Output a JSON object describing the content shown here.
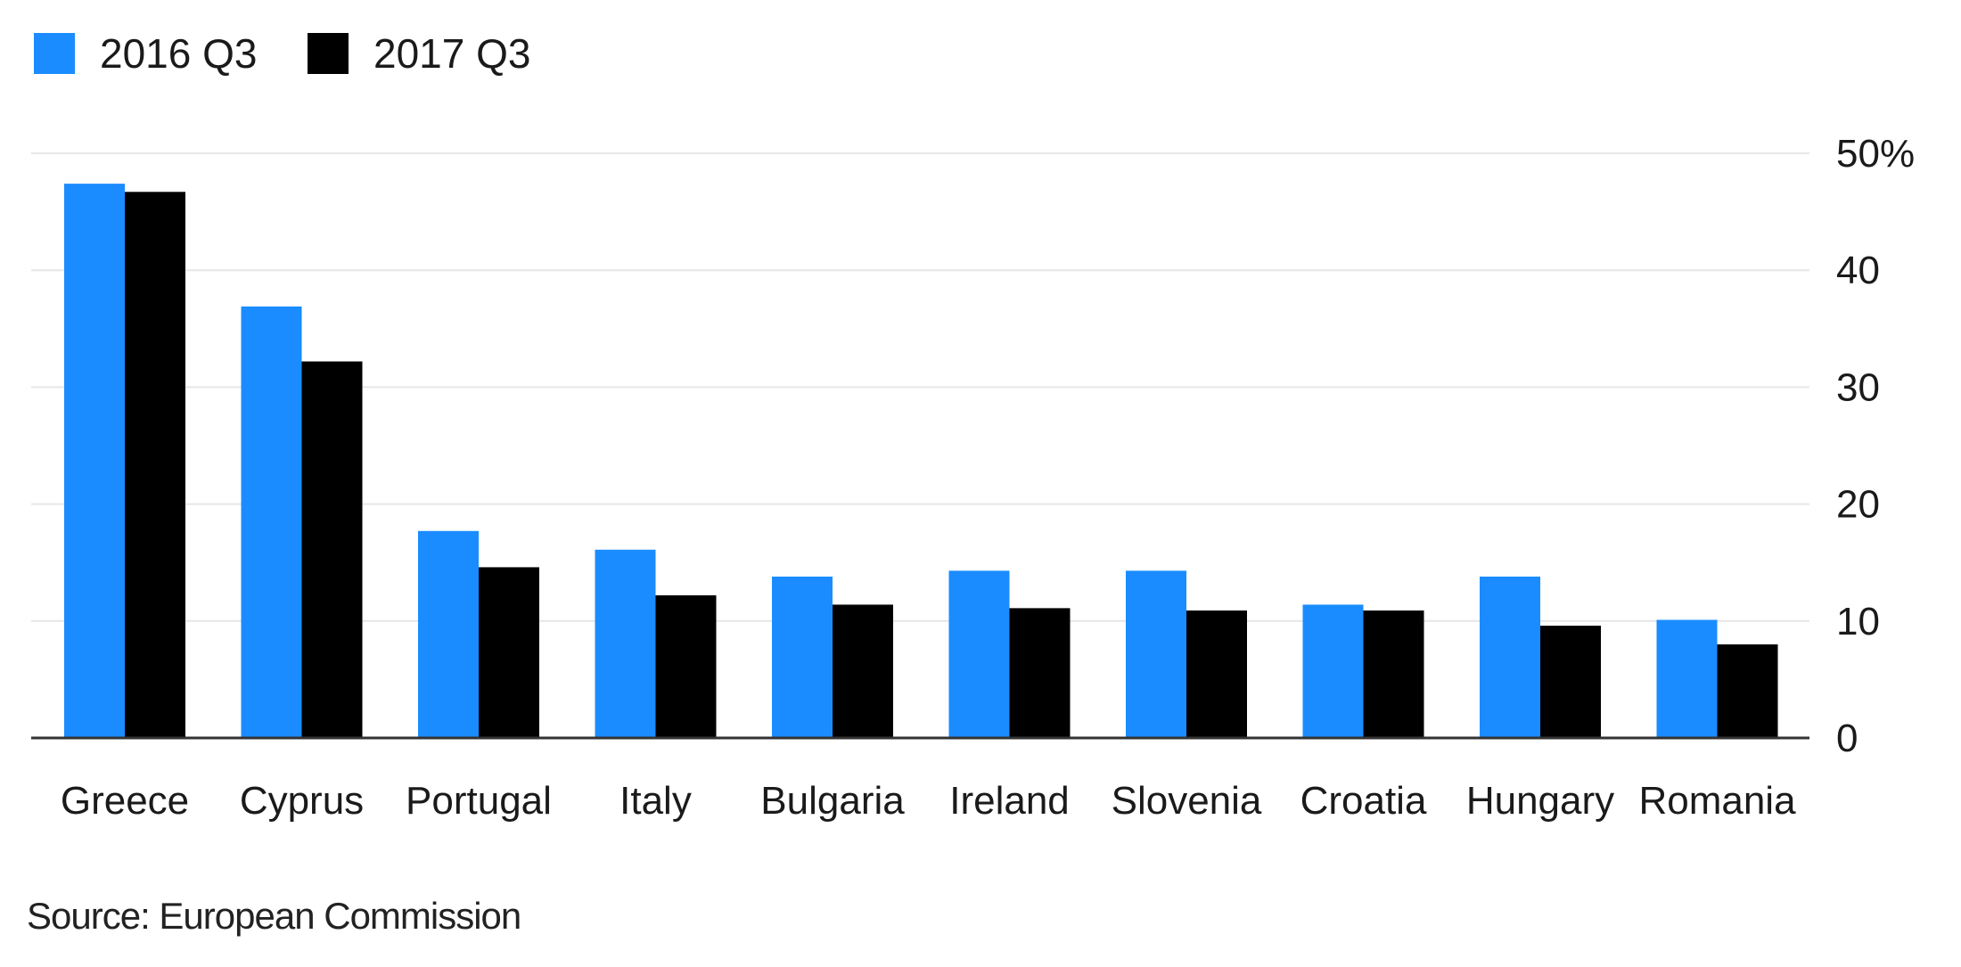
{
  "chart_data": {
    "type": "bar",
    "categories": [
      "Greece",
      "Cyprus",
      "Portugal",
      "Italy",
      "Bulgaria",
      "Ireland",
      "Slovenia",
      "Croatia",
      "Hungary",
      "Romania"
    ],
    "series": [
      {
        "name": "2016 Q3",
        "color": "#1a8cff",
        "values": [
          47.4,
          36.9,
          17.7,
          16.1,
          13.8,
          14.3,
          14.3,
          11.4,
          13.8,
          10.1
        ]
      },
      {
        "name": "2017 Q3",
        "color": "#000000",
        "values": [
          46.7,
          32.2,
          14.6,
          12.2,
          11.4,
          11.1,
          10.9,
          10.9,
          9.6,
          8.0
        ]
      }
    ],
    "y_ticks": [
      {
        "value": 0,
        "label": "0"
      },
      {
        "value": 10,
        "label": "10"
      },
      {
        "value": 20,
        "label": "20"
      },
      {
        "value": 30,
        "label": "30"
      },
      {
        "value": 40,
        "label": "40"
      },
      {
        "value": 50,
        "label": "50%"
      }
    ],
    "ylim": [
      0,
      50
    ],
    "title": "",
    "xlabel": "",
    "ylabel": "",
    "grid": true,
    "legend_position": "top-left",
    "y_axis_side": "right",
    "source": "Source: European Commission"
  }
}
